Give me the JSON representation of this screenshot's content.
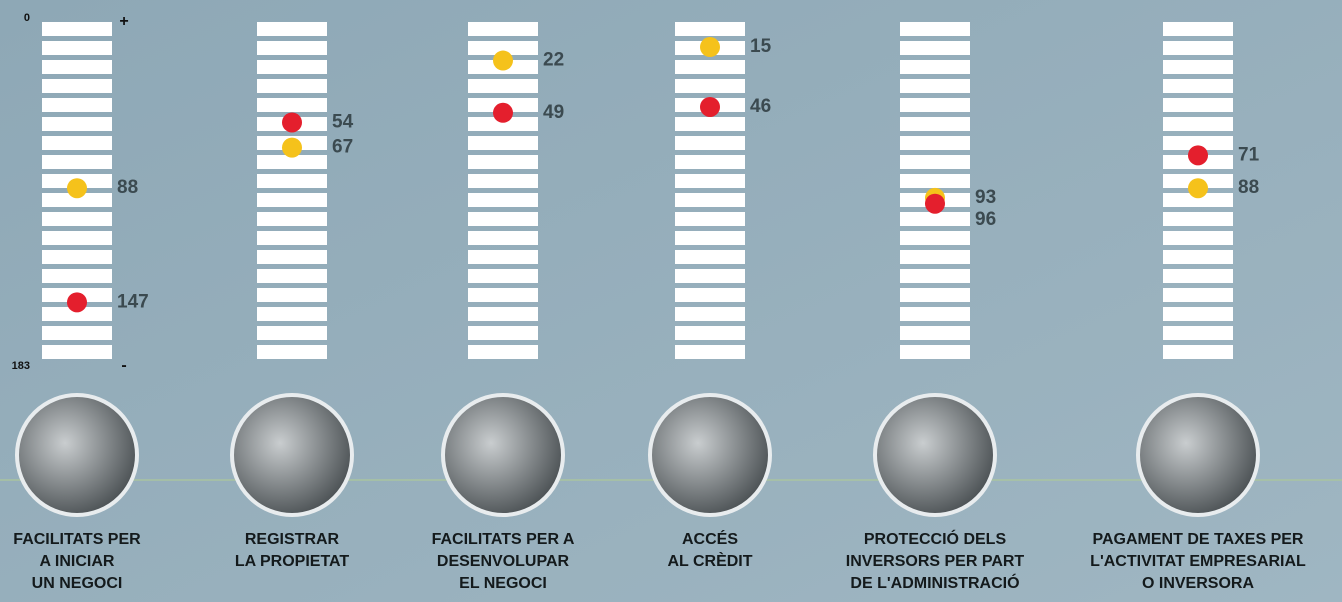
{
  "chart_data": {
    "type": "dot-rank",
    "categories": [
      [
        "FACILITATS PER",
        "A INICIAR",
        "UN NEGOCI"
      ],
      [
        "REGISTRAR",
        "LA PROPIETAT"
      ],
      [
        "FACILITATS PER A",
        "DESENVOLUPAR",
        "EL NEGOCI"
      ],
      [
        "ACCÉS",
        "AL CRÈDIT"
      ],
      [
        "PROTECCIÓ DELS",
        "INVERSORS PER PART",
        "DE L'ADMINISTRACIÓ"
      ],
      [
        "PAGAMENT DE TAXES PER",
        "L'ACTIVITAT EMPRESARIAL",
        "O INVERSORA"
      ]
    ],
    "series": [
      {
        "color": "#f5c21b",
        "values": [
          88,
          67,
          22,
          15,
          93,
          88
        ]
      },
      {
        "color": "#e41f2d",
        "values": [
          147,
          54,
          49,
          46,
          96,
          71
        ]
      }
    ],
    "ylim": [
      0,
      183
    ],
    "yticks": [
      0,
      183
    ],
    "axis_end_labels": [
      "+",
      "-"
    ]
  }
}
